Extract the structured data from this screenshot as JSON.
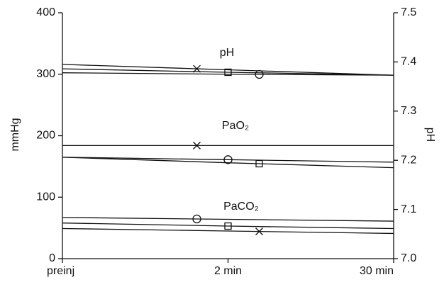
{
  "chart_data": {
    "type": "line",
    "categories": [
      "preinj",
      "2 min",
      "30 min"
    ],
    "ylabel": "mmHg",
    "y2label": "pH",
    "ylim": [
      0,
      400
    ],
    "yticks": [
      0,
      100,
      200,
      300,
      400
    ],
    "y2lim": [
      7.0,
      7.5
    ],
    "y2ticks": [
      {
        "value": 7.0,
        "label": "7.0"
      },
      7.1,
      7.2,
      7.3,
      7.4,
      7.5
    ],
    "annotations": [
      "pH",
      "PaO₂",
      "PaCO₂"
    ],
    "color": "#111111",
    "series": [
      {
        "marker": "x",
        "axis": "y2",
        "values": [
          7.395,
          7.384,
          7.373
        ]
      },
      {
        "marker": "square",
        "axis": "y2",
        "values": [
          7.386,
          7.379,
          7.373
        ]
      },
      {
        "marker": "circle",
        "axis": "y2",
        "values": [
          7.378,
          7.375,
          7.373
        ]
      },
      {
        "marker": "x",
        "values": [
          184,
          184,
          184
        ]
      },
      {
        "marker": "circle",
        "values": [
          165,
          161,
          157
        ]
      },
      {
        "marker": "square",
        "values": [
          165,
          156,
          148
        ]
      },
      {
        "marker": "circle",
        "values": [
          67,
          64,
          61
        ]
      },
      {
        "marker": "square",
        "values": [
          58,
          53,
          49
        ]
      },
      {
        "marker": "x",
        "values": [
          49,
          45,
          41
        ]
      }
    ]
  }
}
